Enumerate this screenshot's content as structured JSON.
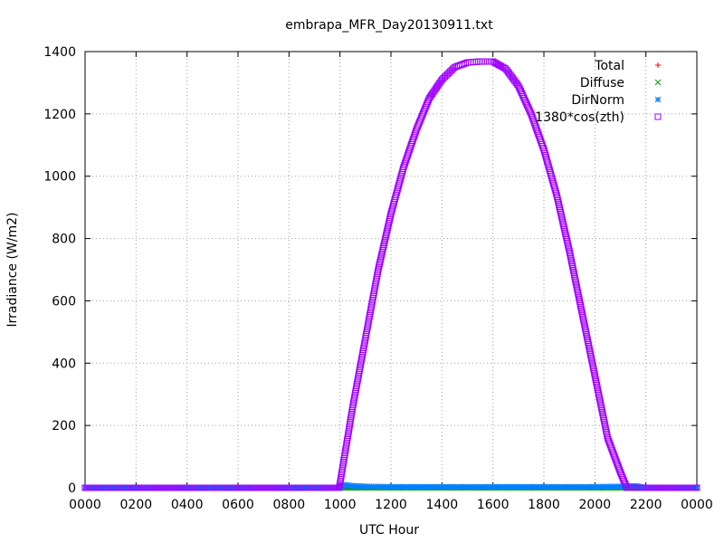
{
  "chart_data": {
    "type": "scatter",
    "title": "embrapa_MFR_Day20130911.txt",
    "xlabel": "UTC Hour",
    "ylabel": "Irradiance (W/m2)",
    "xlim": [
      0,
      24
    ],
    "ylim": [
      0,
      1400
    ],
    "grid": true,
    "legend_position": "top-right",
    "x_ticks": [
      {
        "value": 0,
        "label": "0000"
      },
      {
        "value": 2,
        "label": "0200"
      },
      {
        "value": 4,
        "label": "0400"
      },
      {
        "value": 6,
        "label": "0600"
      },
      {
        "value": 8,
        "label": "0800"
      },
      {
        "value": 10,
        "label": "1000"
      },
      {
        "value": 12,
        "label": "1200"
      },
      {
        "value": 14,
        "label": "1400"
      },
      {
        "value": 16,
        "label": "1600"
      },
      {
        "value": 18,
        "label": "1800"
      },
      {
        "value": 20,
        "label": "2000"
      },
      {
        "value": 22,
        "label": "2200"
      },
      {
        "value": 24,
        "label": "0000"
      }
    ],
    "y_ticks": [
      {
        "value": 0,
        "label": "0"
      },
      {
        "value": 200,
        "label": "200"
      },
      {
        "value": 400,
        "label": "400"
      },
      {
        "value": 600,
        "label": "600"
      },
      {
        "value": 800,
        "label": "800"
      },
      {
        "value": 1000,
        "label": "1000"
      },
      {
        "value": 1200,
        "label": "1200"
      },
      {
        "value": 1400,
        "label": "1400"
      }
    ],
    "series": [
      {
        "name": "Total",
        "marker": "plus",
        "color": "#ff0000",
        "points": [
          [
            0,
            0
          ],
          [
            2,
            0
          ],
          [
            4,
            0
          ],
          [
            6,
            0
          ],
          [
            8,
            0
          ],
          [
            10,
            0
          ],
          [
            12,
            0
          ],
          [
            14,
            0
          ],
          [
            16,
            0
          ],
          [
            18,
            0
          ],
          [
            20,
            0
          ],
          [
            22,
            0
          ],
          [
            24,
            0
          ]
        ]
      },
      {
        "name": "Diffuse",
        "marker": "cross",
        "color": "#00a000",
        "points": [
          [
            0,
            0
          ],
          [
            2,
            0
          ],
          [
            4,
            0
          ],
          [
            6,
            0
          ],
          [
            8,
            0
          ],
          [
            10,
            0
          ],
          [
            12,
            0
          ],
          [
            14,
            0
          ],
          [
            16,
            0
          ],
          [
            18,
            0
          ],
          [
            20,
            0
          ],
          [
            22,
            0
          ],
          [
            24,
            0
          ]
        ]
      },
      {
        "name": "DirNorm",
        "marker": "star",
        "color": "#0080ff",
        "points": [
          [
            0,
            0
          ],
          [
            2,
            0
          ],
          [
            4,
            0
          ],
          [
            6,
            0
          ],
          [
            8,
            0
          ],
          [
            10,
            0
          ],
          [
            10.2,
            10
          ],
          [
            10.5,
            6
          ],
          [
            11,
            4
          ],
          [
            12,
            3
          ],
          [
            13,
            3
          ],
          [
            14,
            3
          ],
          [
            15,
            3
          ],
          [
            16,
            3
          ],
          [
            17,
            3
          ],
          [
            18,
            3
          ],
          [
            19,
            3
          ],
          [
            20,
            3
          ],
          [
            21,
            4
          ],
          [
            21.6,
            6
          ],
          [
            22,
            0
          ],
          [
            24,
            0
          ]
        ]
      },
      {
        "name": "1380*cos(zth)",
        "marker": "square",
        "color": "#a000ff",
        "points": [
          [
            0,
            0
          ],
          [
            2,
            0
          ],
          [
            4,
            0
          ],
          [
            6,
            0
          ],
          [
            8,
            0
          ],
          [
            9.97,
            0
          ],
          [
            10,
            14
          ],
          [
            10.5,
            260
          ],
          [
            11,
            480
          ],
          [
            11.5,
            700
          ],
          [
            12,
            880
          ],
          [
            12.5,
            1030
          ],
          [
            13,
            1150
          ],
          [
            13.5,
            1250
          ],
          [
            14,
            1310
          ],
          [
            14.5,
            1350
          ],
          [
            15,
            1365
          ],
          [
            15.5,
            1368
          ],
          [
            16,
            1368
          ],
          [
            16.5,
            1345
          ],
          [
            17,
            1290
          ],
          [
            17.5,
            1200
          ],
          [
            18,
            1085
          ],
          [
            18.5,
            940
          ],
          [
            19,
            760
          ],
          [
            19.5,
            560
          ],
          [
            20,
            360
          ],
          [
            20.5,
            160
          ],
          [
            21,
            50
          ],
          [
            21.2,
            10
          ],
          [
            21.25,
            0
          ],
          [
            22,
            0
          ],
          [
            24,
            0
          ]
        ]
      }
    ]
  }
}
